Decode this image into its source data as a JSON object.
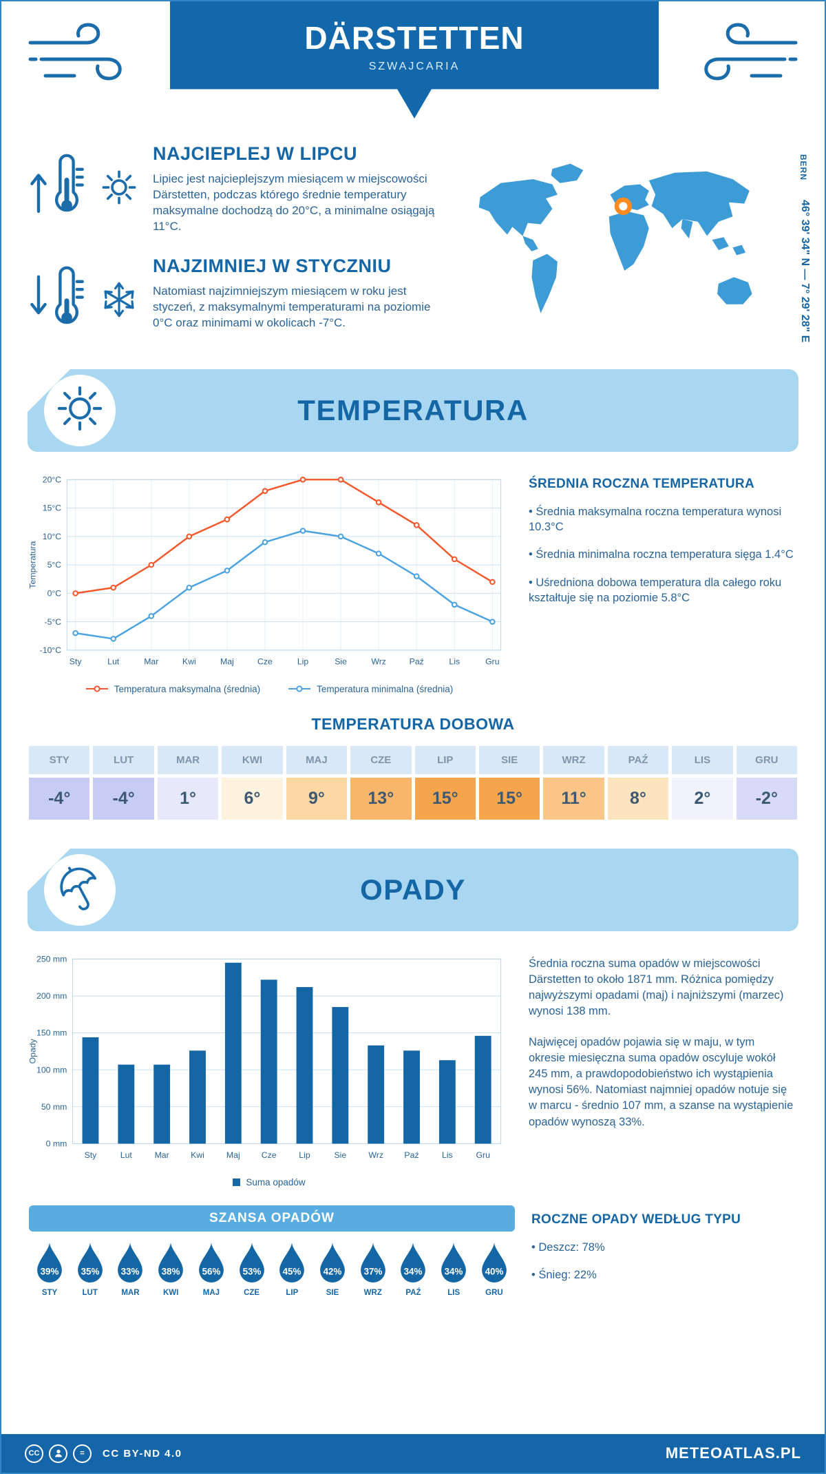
{
  "page": {
    "title": "DÄRSTETTEN",
    "subtitle": "SZWAJCARIA"
  },
  "highlights": {
    "warm": {
      "title": "NAJCIEPLEJ W LIPCU",
      "text": "Lipiec jest najcieplejszym miesiącem w miejscowości Därstetten, podczas którego średnie temperatury maksymalne dochodzą do 20°C, a minimalne osiągają 11°C."
    },
    "cold": {
      "title": "NAJZIMNIEJ W STYCZNIU",
      "text": "Natomiast najzimniejszym miesiącem w roku jest styczeń, z maksymalnymi temperaturami na poziomie 0°C oraz minimami w okolicach -7°C."
    }
  },
  "map": {
    "city": "BERN",
    "coords": "46° 39' 34\" N — 7° 29' 28\" E",
    "marker_color": "#ff8a1e",
    "land_color": "#3d9bd5"
  },
  "sections": {
    "temperature": {
      "title": "TEMPERATURA"
    },
    "daily": {
      "title": "TEMPERATURA DOBOWA"
    },
    "precipitation": {
      "title": "OPADY"
    },
    "chance": {
      "title": "SZANSA OPADÓW"
    }
  },
  "annual_temp": {
    "title": "ŚREDNIA ROCZNA TEMPERATURA",
    "bullets": [
      "Średnia maksymalna roczna temperatura wynosi 10.3°C",
      "Średnia minimalna roczna temperatura sięga 1.4°C",
      "Uśredniona dobowa temperatura dla całego roku kształtuje się na poziomie 5.8°C"
    ]
  },
  "precip_summary": [
    "Średnia roczna suma opadów w miejscowości Därstetten to około 1871 mm. Różnica pomiędzy najwyższymi opadami (maj) i najniższymi (marzec) wynosi 138 mm.",
    "Najwięcej opadów pojawia się w maju, w tym okresie miesięczna suma opadów oscyluje wokół 245 mm, a prawdopodobieństwo ich wystąpienia wynosi 56%. Natomiast najmniej opadów notuje się w marcu - średnio 107 mm, a szanse na wystąpienie opadów wynoszą 33%."
  ],
  "annual_precip_type": {
    "title": "ROCZNE OPADY WEDŁUG TYPU",
    "bullets": [
      "Deszcz: 78%",
      "Śnieg: 22%"
    ]
  },
  "daily_table": {
    "months": [
      "STY",
      "LUT",
      "MAR",
      "KWI",
      "MAJ",
      "CZE",
      "LIP",
      "SIE",
      "WRZ",
      "PAŹ",
      "LIS",
      "GRU"
    ],
    "values": [
      "-4°",
      "-4°",
      "1°",
      "6°",
      "9°",
      "13°",
      "15°",
      "15°",
      "11°",
      "8°",
      "2°",
      "-2°"
    ],
    "colors": [
      "#c7ccf4",
      "#c7ccf4",
      "#e7e9fb",
      "#fdf2dd",
      "#fbd7a2",
      "#f8b66a",
      "#f5a64c",
      "#f5a64c",
      "#f9c687",
      "#fce4bf",
      "#f1f2fc",
      "#d8dbf7"
    ]
  },
  "precip_chance": {
    "months": [
      "STY",
      "LUT",
      "MAR",
      "KWI",
      "MAJ",
      "CZE",
      "LIP",
      "SIE",
      "WRZ",
      "PAŹ",
      "LIS",
      "GRU"
    ],
    "values": [
      "39%",
      "35%",
      "33%",
      "38%",
      "56%",
      "53%",
      "45%",
      "42%",
      "37%",
      "34%",
      "34%",
      "40%"
    ],
    "droplet_color": "#1566a5"
  },
  "chart_data": [
    {
      "type": "line",
      "title": "Temperatura",
      "categories": [
        "Sty",
        "Lut",
        "Mar",
        "Kwi",
        "Maj",
        "Cze",
        "Lip",
        "Sie",
        "Wrz",
        "Paź",
        "Lis",
        "Gru"
      ],
      "series": [
        {
          "name": "Temperatura maksymalna (średnia)",
          "color": "#f4582a",
          "values": [
            0,
            1,
            5,
            10,
            13,
            18,
            20,
            20,
            16,
            12,
            6,
            2
          ]
        },
        {
          "name": "Temperatura minimalna (średnia)",
          "color": "#4aa3e0",
          "values": [
            -7,
            -8,
            -4,
            1,
            4,
            9,
            11,
            10,
            7,
            3,
            -2,
            -5
          ]
        }
      ],
      "xlabel": "",
      "ylabel": "Temperatura",
      "ylim": [
        -10,
        20
      ],
      "ytick_step": 5,
      "ytick_suffix": "°C",
      "grid": true,
      "legend_position": "bottom"
    },
    {
      "type": "bar",
      "title": "Opady",
      "categories": [
        "Sty",
        "Lut",
        "Mar",
        "Kwi",
        "Maj",
        "Cze",
        "Lip",
        "Sie",
        "Wrz",
        "Paź",
        "Lis",
        "Gru"
      ],
      "series": [
        {
          "name": "Suma opadów",
          "color": "#1566a5",
          "values": [
            144,
            107,
            107,
            126,
            245,
            222,
            212,
            185,
            133,
            126,
            113,
            146
          ]
        }
      ],
      "xlabel": "",
      "ylabel": "Opady",
      "ylim": [
        0,
        250
      ],
      "ytick_step": 50,
      "ytick_suffix": " mm",
      "grid": true,
      "legend_position": "bottom"
    }
  ],
  "footer": {
    "license": "CC BY-ND 4.0",
    "site": "METEOATLAS.PL"
  },
  "colors": {
    "primary": "#1268ab",
    "banner_light": "#a9d6f1",
    "chance_bar": "#58acdf"
  }
}
